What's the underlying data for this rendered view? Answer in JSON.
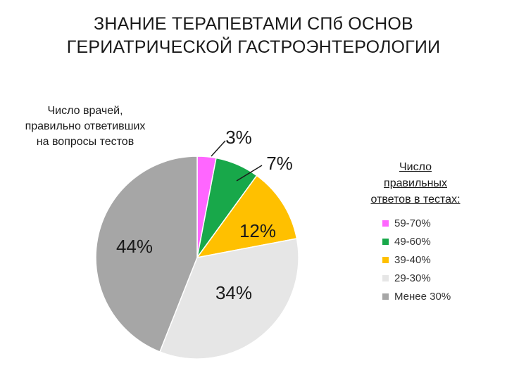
{
  "title": {
    "line1": "ЗНАНИЕ ТЕРАПЕВТАМИ СПб ОСНОВ",
    "line2": "ГЕРИАТРИЧЕСКОЙ ГАСТРОЭНТЕРОЛОГИИ"
  },
  "left_caption": {
    "line1": "Число врачей,",
    "line2": "правильно ответивших",
    "line3": "на вопросы тестов"
  },
  "legend_title": {
    "line1": "Число",
    "line2": "правильных",
    "line3": "ответов в тестах:"
  },
  "chart_data": {
    "type": "pie",
    "title": "ЗНАНИЕ ТЕРАПЕВТАМИ СПб ОСНОВ ГЕРИАТРИЧЕСКОЙ ГАСТРОЭНТЕРОЛОГИИ",
    "legend_position": "right",
    "slices": [
      {
        "label": "59-70%",
        "value": 3,
        "display": "3%",
        "color": "#ff66ff"
      },
      {
        "label": "49-60%",
        "value": 7,
        "display": "7%",
        "color": "#18a84a"
      },
      {
        "label": "39-40%",
        "value": 12,
        "display": "12%",
        "color": "#ffc000"
      },
      {
        "label": "29-30%",
        "value": 34,
        "display": "34%",
        "color": "#e6e6e6"
      },
      {
        "label": "Менее 30%",
        "value": 44,
        "display": "44%",
        "color": "#a6a6a6"
      }
    ]
  }
}
